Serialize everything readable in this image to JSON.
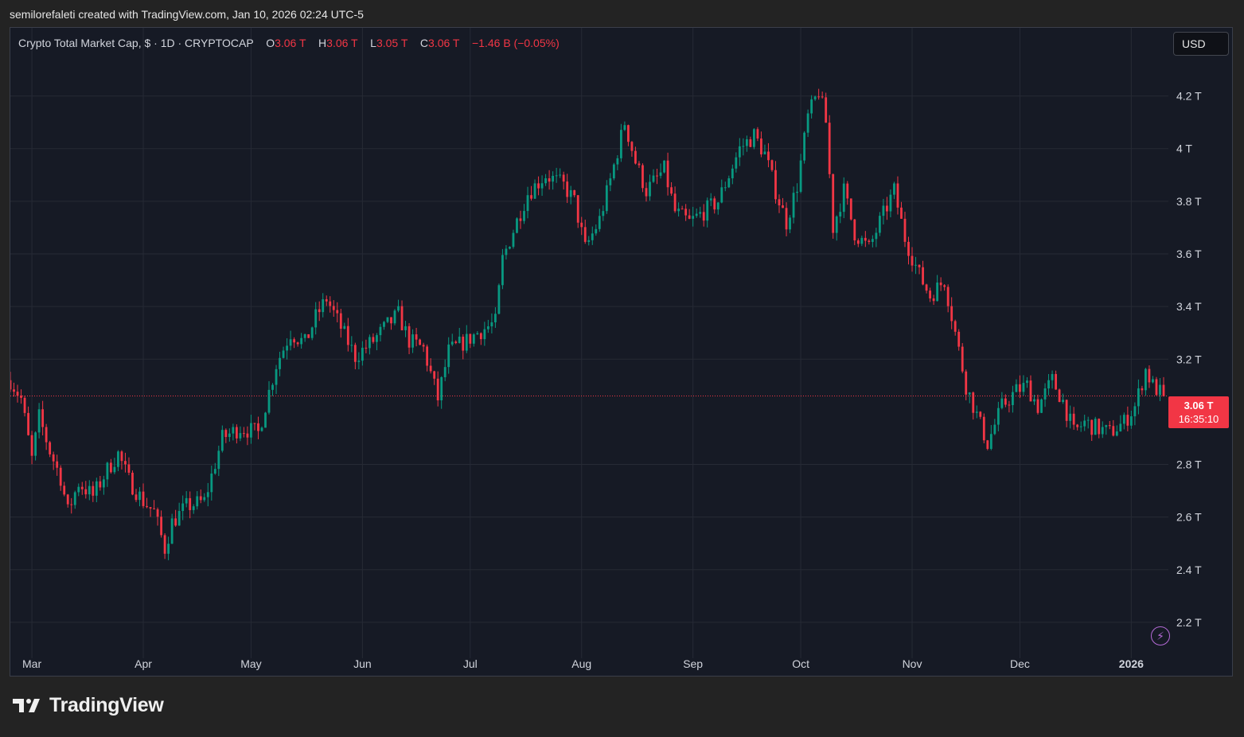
{
  "caption": "semilorefaleti created with TradingView.com, Jan 10, 2026 02:24 UTC-5",
  "legend": {
    "symbol": "Crypto Total Market Cap, $ · 1D · CRYPTOCAP",
    "open_label": "O",
    "open": "3.06 T",
    "high_label": "H",
    "high": "3.06 T",
    "low_label": "L",
    "low": "3.05 T",
    "close_label": "C",
    "close": "3.06 T",
    "change": "−1.46 B (−0.05%)"
  },
  "currency_button": "USD",
  "last_price": {
    "price": "3.06 T",
    "countdown": "16:35:10"
  },
  "brand": "TradingView",
  "colors": {
    "up": "#089981",
    "down": "#f23645",
    "background": "#161a25",
    "grid": "#262a35"
  },
  "chart_data": {
    "type": "candlestick",
    "y_unit": "T",
    "y_ticks": [
      "4.2 T",
      "4 T",
      "3.8 T",
      "3.6 T",
      "3.4 T",
      "3.2 T",
      "2.8 T",
      "2.6 T",
      "2.4 T",
      "2.2 T"
    ],
    "y_tick_values": [
      4.2,
      4.0,
      3.8,
      3.6,
      3.4,
      3.2,
      2.8,
      2.6,
      2.4,
      2.2
    ],
    "ylim": [
      2.1,
      4.35
    ],
    "x_ticks": [
      "Mar",
      "Apr",
      "May",
      "Jun",
      "Jul",
      "Aug",
      "Sep",
      "Oct",
      "Nov",
      "Dec",
      "2026"
    ],
    "x_tick_dates": [
      "2025-03-01",
      "2025-04-01",
      "2025-05-01",
      "2025-06-01",
      "2025-07-01",
      "2025-08-01",
      "2025-09-01",
      "2025-10-01",
      "2025-11-01",
      "2025-12-01",
      "2026-01-01"
    ],
    "x_range": [
      "2025-02-23",
      "2026-01-10"
    ],
    "last_value": 3.06,
    "grid": true,
    "close_series_approx": [
      [
        "2025-02-23",
        3.12
      ],
      [
        "2025-02-26",
        3.05
      ],
      [
        "2025-03-01",
        2.82
      ],
      [
        "2025-03-03",
        2.98
      ],
      [
        "2025-03-06",
        2.85
      ],
      [
        "2025-03-09",
        2.75
      ],
      [
        "2025-03-11",
        2.62
      ],
      [
        "2025-03-14",
        2.73
      ],
      [
        "2025-03-18",
        2.68
      ],
      [
        "2025-03-22",
        2.78
      ],
      [
        "2025-03-25",
        2.84
      ],
      [
        "2025-03-28",
        2.74
      ],
      [
        "2025-04-01",
        2.66
      ],
      [
        "2025-04-04",
        2.62
      ],
      [
        "2025-04-07",
        2.48
      ],
      [
        "2025-04-09",
        2.58
      ],
      [
        "2025-04-13",
        2.64
      ],
      [
        "2025-04-18",
        2.66
      ],
      [
        "2025-04-23",
        2.9
      ],
      [
        "2025-04-28",
        2.94
      ],
      [
        "2025-05-03",
        2.92
      ],
      [
        "2025-05-08",
        3.18
      ],
      [
        "2025-05-12",
        3.3
      ],
      [
        "2025-05-16",
        3.26
      ],
      [
        "2025-05-19",
        3.36
      ],
      [
        "2025-05-22",
        3.43
      ],
      [
        "2025-05-26",
        3.32
      ],
      [
        "2025-05-30",
        3.21
      ],
      [
        "2025-06-04",
        3.27
      ],
      [
        "2025-06-08",
        3.33
      ],
      [
        "2025-06-11",
        3.37
      ],
      [
        "2025-06-14",
        3.27
      ],
      [
        "2025-06-18",
        3.24
      ],
      [
        "2025-06-22",
        3.05
      ],
      [
        "2025-06-25",
        3.23
      ],
      [
        "2025-06-30",
        3.27
      ],
      [
        "2025-07-03",
        3.3
      ],
      [
        "2025-07-08",
        3.34
      ],
      [
        "2025-07-10",
        3.58
      ],
      [
        "2025-07-13",
        3.69
      ],
      [
        "2025-07-17",
        3.83
      ],
      [
        "2025-07-22",
        3.9
      ],
      [
        "2025-07-27",
        3.86
      ],
      [
        "2025-07-30",
        3.8
      ],
      [
        "2025-08-02",
        3.62
      ],
      [
        "2025-08-06",
        3.73
      ],
      [
        "2025-08-09",
        3.88
      ],
      [
        "2025-08-13",
        4.1
      ],
      [
        "2025-08-16",
        3.95
      ],
      [
        "2025-08-19",
        3.84
      ],
      [
        "2025-08-24",
        3.92
      ],
      [
        "2025-08-27",
        3.76
      ],
      [
        "2025-08-31",
        3.72
      ],
      [
        "2025-09-04",
        3.76
      ],
      [
        "2025-09-08",
        3.8
      ],
      [
        "2025-09-11",
        3.9
      ],
      [
        "2025-09-14",
        4.0
      ],
      [
        "2025-09-18",
        4.05
      ],
      [
        "2025-09-21",
        3.98
      ],
      [
        "2025-09-24",
        3.84
      ],
      [
        "2025-09-27",
        3.72
      ],
      [
        "2025-09-30",
        3.86
      ],
      [
        "2025-10-03",
        4.12
      ],
      [
        "2025-10-06",
        4.22
      ],
      [
        "2025-10-08",
        4.1
      ],
      [
        "2025-10-10",
        3.7
      ],
      [
        "2025-10-13",
        3.84
      ],
      [
        "2025-10-16",
        3.68
      ],
      [
        "2025-10-20",
        3.62
      ],
      [
        "2025-10-23",
        3.72
      ],
      [
        "2025-10-27",
        3.84
      ],
      [
        "2025-10-30",
        3.66
      ],
      [
        "2025-11-03",
        3.52
      ],
      [
        "2025-11-06",
        3.44
      ],
      [
        "2025-11-10",
        3.5
      ],
      [
        "2025-11-13",
        3.3
      ],
      [
        "2025-11-16",
        3.1
      ],
      [
        "2025-11-20",
        2.95
      ],
      [
        "2025-11-22",
        2.88
      ],
      [
        "2025-11-26",
        3.02
      ],
      [
        "2025-11-30",
        3.08
      ],
      [
        "2025-12-03",
        3.1
      ],
      [
        "2025-12-06",
        3.02
      ],
      [
        "2025-12-10",
        3.12
      ],
      [
        "2025-12-13",
        3.04
      ],
      [
        "2025-12-16",
        2.92
      ],
      [
        "2025-12-19",
        2.96
      ],
      [
        "2025-12-22",
        2.94
      ],
      [
        "2025-12-26",
        2.92
      ],
      [
        "2025-12-30",
        2.96
      ],
      [
        "2026-01-02",
        3.02
      ],
      [
        "2026-01-05",
        3.16
      ],
      [
        "2026-01-07",
        3.1
      ],
      [
        "2026-01-10",
        3.06
      ]
    ]
  }
}
